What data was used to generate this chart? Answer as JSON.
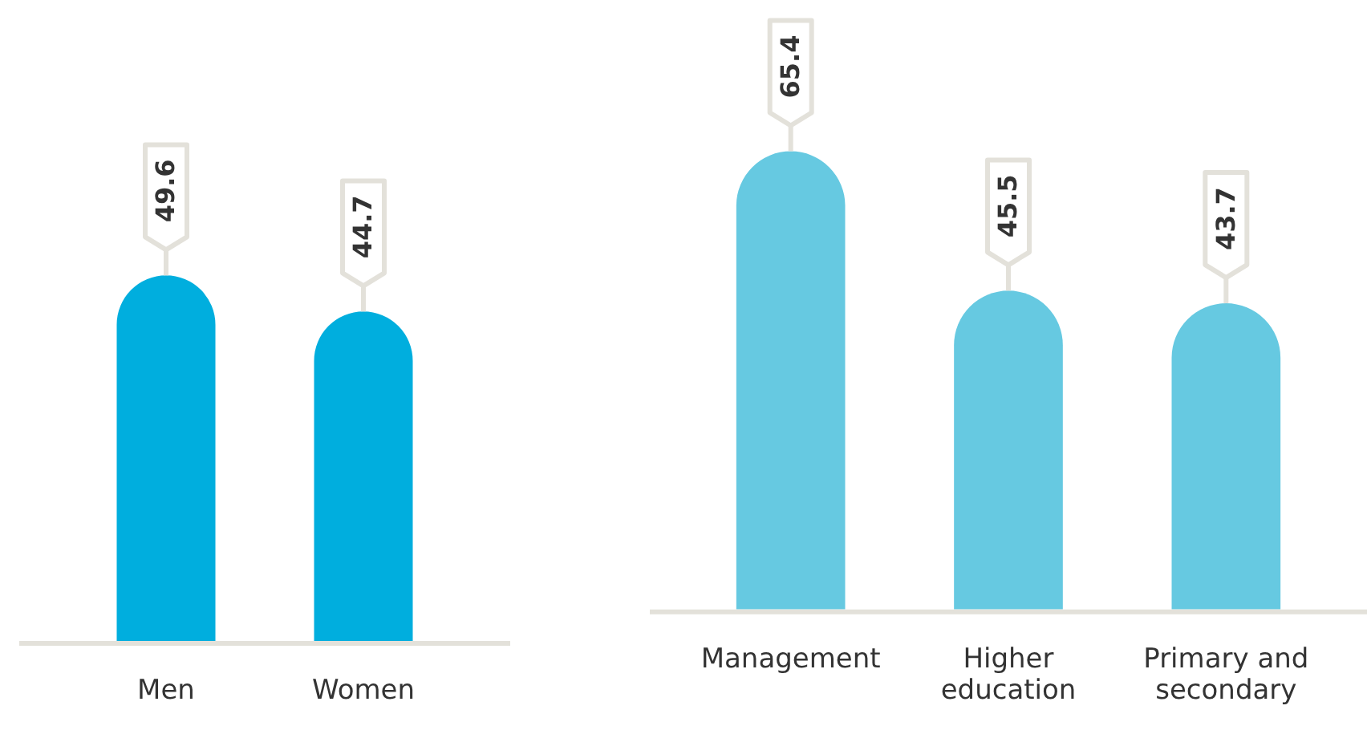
{
  "chart_data": [
    {
      "type": "bar",
      "categories": [
        "Men",
        "Women"
      ],
      "values": [
        49.6,
        44.7
      ],
      "color": "#00aede",
      "data_labels": true
    },
    {
      "type": "bar",
      "categories": [
        "Management",
        "Higher education",
        "Primary and secondary"
      ],
      "values": [
        65.4,
        45.5,
        43.7
      ],
      "color": "#66c9e1",
      "data_labels": true
    }
  ]
}
